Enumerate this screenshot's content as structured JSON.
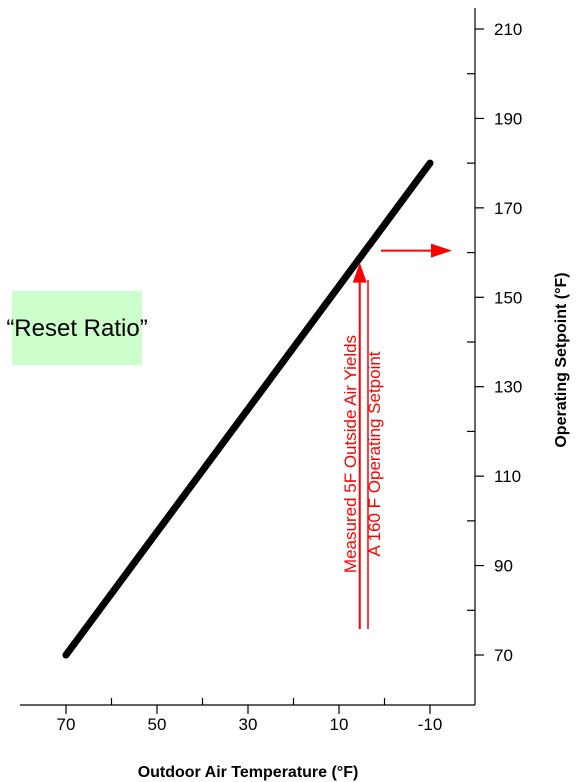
{
  "chart_data": {
    "type": "line",
    "title": "",
    "xlabel": "Outdoor Air Temperature (°F)",
    "ylabel": "Operating Setpoint (°F)",
    "xlim": [
      80,
      -20
    ],
    "ylim": [
      60,
      215
    ],
    "x_reversed": true,
    "x_ticks": [
      70,
      50,
      30,
      10,
      -10
    ],
    "x_ticks_minor": [
      60,
      40,
      20,
      0
    ],
    "y_ticks": [
      70,
      90,
      110,
      130,
      150,
      170,
      190,
      210
    ],
    "y_ticks_minor": [
      80,
      100,
      120,
      140,
      160,
      180,
      200
    ],
    "y_axis_position": "right",
    "grid": false,
    "series": [
      {
        "name": "",
        "color": "#000000",
        "points": [
          {
            "x": 70,
            "y": 70
          },
          {
            "x": -10,
            "y": 180
          }
        ]
      }
    ],
    "annotations": {
      "reset_box": {
        "text": "“Reset Ratio”",
        "fill": "#ccffcc"
      },
      "measure_note": {
        "line1": "Measured 5F Outside Air Yields",
        "line2": "A 160 F Operating Setpoint",
        "color": "#ff0000",
        "outside_air_x": 5,
        "setpoint_y": 160
      }
    }
  }
}
